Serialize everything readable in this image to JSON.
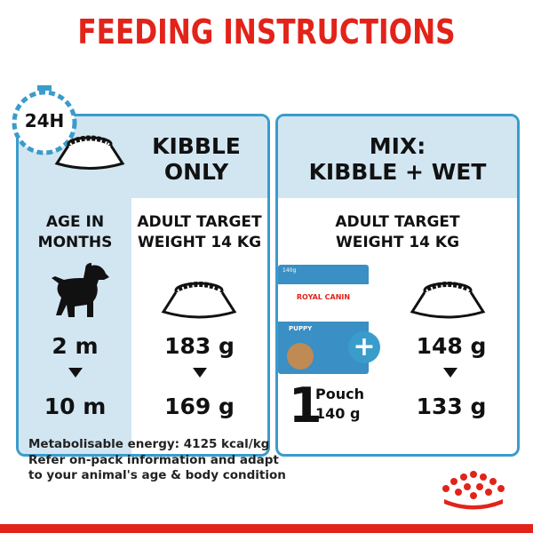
{
  "title": "FEEDING INSTRUCTIONS",
  "clock_label": "24H",
  "kibble_only": {
    "header": [
      "KIBBLE",
      "ONLY"
    ],
    "age_header": [
      "AGE IN",
      "MONTHS"
    ],
    "target_header": [
      "ADULT TARGET",
      "WEIGHT 14 KG"
    ],
    "age_from": "2 m",
    "age_to": "10 m",
    "amount_from": "183 g",
    "amount_to": "169 g"
  },
  "mix": {
    "header": [
      "MIX:",
      "KIBBLE + WET"
    ],
    "target_header": [
      "ADULT TARGET",
      "WEIGHT 14 KG"
    ],
    "pouch_count": "1",
    "pouch_label": "Pouch",
    "pouch_weight": "140 g",
    "pouch_package": {
      "weight": "140g",
      "brand": "ROYAL CANIN",
      "product": "PUPPY"
    },
    "plus": "+",
    "amount_from": "148 g",
    "amount_to": "133 g"
  },
  "footer": [
    "Metabolisable energy: 4125 kcal/kg",
    "Refer on-pack information and adapt",
    "to your animal's age & body condition"
  ],
  "colors": {
    "red": "#e2231a",
    "blue": "#3a9ccb",
    "light_blue": "#d2e6f2"
  }
}
